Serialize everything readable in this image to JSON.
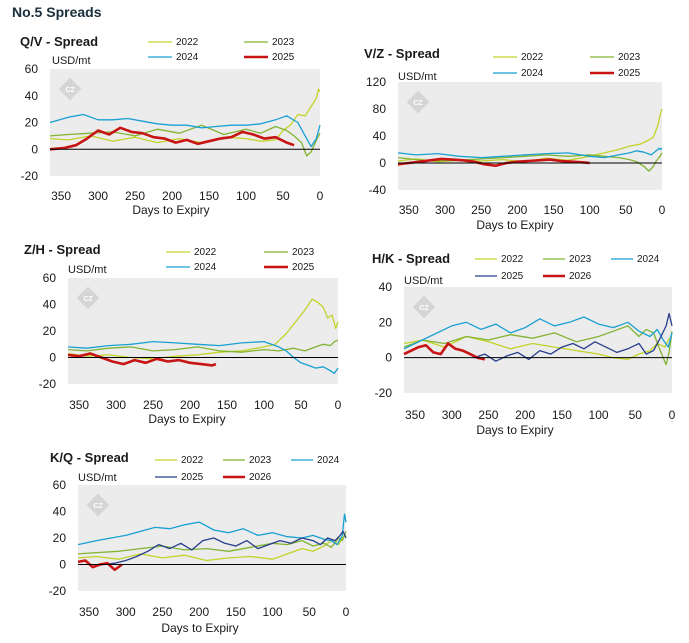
{
  "page_title": "No.5 Spreads",
  "colors": {
    "2022": "#c3d32a",
    "2023": "#82b432",
    "2024": "#19a0d2",
    "2025_red": "#c81414",
    "2025_navy": "#283c8c",
    "2026": "#c81414",
    "zero_line": "#000000",
    "plot_bg": "#ececec"
  },
  "watermark_icon": "cz-diamond-logo",
  "chart_data": [
    {
      "id": "qv",
      "type": "line",
      "title": "Q/V - Spread",
      "unit": "USD/mt",
      "xlabel": "Days to Expiry",
      "x_reversed": true,
      "xlim": [
        365,
        0
      ],
      "ylim": [
        -20,
        60
      ],
      "x_ticks": [
        350,
        300,
        250,
        200,
        150,
        100,
        50,
        0
      ],
      "y_ticks": [
        -20,
        0,
        20,
        40,
        60
      ],
      "legend": [
        "2022",
        "2023",
        "2024",
        "2025"
      ],
      "series": [
        {
          "name": "2022",
          "x": [
            365,
            340,
            310,
            280,
            250,
            220,
            190,
            160,
            130,
            100,
            80,
            60,
            50,
            40,
            30,
            20,
            12,
            5,
            2,
            0
          ],
          "y": [
            8,
            7,
            10,
            6,
            9,
            5,
            8,
            5,
            9,
            8,
            6,
            7,
            14,
            18,
            26,
            25,
            32,
            38,
            45,
            43
          ]
        },
        {
          "name": "2023",
          "x": [
            365,
            340,
            310,
            280,
            250,
            220,
            190,
            160,
            130,
            100,
            80,
            60,
            45,
            35,
            25,
            18,
            12,
            8,
            4,
            0
          ],
          "y": [
            10,
            11,
            12,
            13,
            10,
            15,
            12,
            18,
            11,
            15,
            12,
            17,
            14,
            10,
            5,
            -5,
            -2,
            3,
            8,
            12
          ]
        },
        {
          "name": "2024",
          "x": [
            365,
            340,
            320,
            300,
            280,
            260,
            240,
            220,
            200,
            180,
            160,
            140,
            120,
            100,
            80,
            60,
            45,
            30,
            20,
            12,
            5,
            0
          ],
          "y": [
            20,
            24,
            26,
            22,
            22,
            23,
            21,
            19,
            18,
            18,
            16,
            17,
            18,
            18,
            19,
            22,
            25,
            20,
            10,
            2,
            8,
            18
          ]
        },
        {
          "name": "2025",
          "x": [
            365,
            345,
            330,
            315,
            300,
            285,
            270,
            255,
            240,
            225,
            210,
            195,
            180,
            165,
            150,
            135,
            120,
            105,
            90,
            75,
            60,
            45,
            35
          ],
          "y": [
            0,
            1,
            3,
            8,
            14,
            11,
            16,
            13,
            12,
            9,
            8,
            5,
            7,
            4,
            6,
            8,
            9,
            13,
            11,
            8,
            9,
            5,
            3
          ]
        }
      ]
    },
    {
      "id": "vz",
      "type": "line",
      "title": "V/Z - Spread",
      "unit": "USD/mt",
      "xlabel": "Days to Expiry",
      "x_reversed": true,
      "xlim": [
        365,
        0
      ],
      "ylim": [
        -40,
        120
      ],
      "x_ticks": [
        350,
        300,
        250,
        200,
        150,
        100,
        50,
        0
      ],
      "y_ticks": [
        -40,
        0,
        40,
        80,
        120
      ],
      "legend": [
        "2022",
        "2023",
        "2024",
        "2025"
      ],
      "series": [
        {
          "name": "2022",
          "x": [
            365,
            340,
            310,
            280,
            250,
            220,
            190,
            160,
            130,
            100,
            80,
            60,
            45,
            30,
            20,
            12,
            6,
            3,
            0
          ],
          "y": [
            3,
            6,
            2,
            4,
            3,
            5,
            2,
            7,
            4,
            10,
            15,
            20,
            25,
            28,
            33,
            38,
            55,
            70,
            80
          ]
        },
        {
          "name": "2023",
          "x": [
            365,
            340,
            310,
            280,
            250,
            220,
            190,
            160,
            130,
            100,
            80,
            60,
            45,
            35,
            25,
            18,
            12,
            8,
            4,
            0
          ],
          "y": [
            8,
            5,
            3,
            4,
            6,
            8,
            10,
            12,
            10,
            12,
            10,
            8,
            5,
            2,
            -5,
            -12,
            -5,
            3,
            8,
            15
          ]
        },
        {
          "name": "2024",
          "x": [
            365,
            340,
            310,
            280,
            250,
            220,
            190,
            160,
            130,
            100,
            80,
            60,
            45,
            35,
            25,
            15,
            8,
            4,
            2,
            0
          ],
          "y": [
            15,
            12,
            14,
            10,
            8,
            10,
            12,
            14,
            15,
            10,
            8,
            12,
            15,
            18,
            16,
            12,
            18,
            22,
            20,
            22
          ]
        },
        {
          "name": "2025",
          "x": [
            365,
            350,
            335,
            320,
            305,
            290,
            275,
            260,
            245,
            230,
            215,
            200,
            185,
            170,
            155,
            140,
            125,
            110,
            100
          ],
          "y": [
            -2,
            0,
            2,
            4,
            6,
            5,
            4,
            2,
            -2,
            -4,
            0,
            2,
            3,
            4,
            5,
            3,
            2,
            1,
            0
          ]
        }
      ]
    },
    {
      "id": "zh",
      "type": "line",
      "title": "Z/H - Spread",
      "unit": "USD/mt",
      "xlabel": "Days to Expiry",
      "x_reversed": true,
      "xlim": [
        365,
        0
      ],
      "ylim": [
        -20,
        60
      ],
      "x_ticks": [
        350,
        300,
        250,
        200,
        150,
        100,
        50,
        0
      ],
      "y_ticks": [
        -20,
        0,
        20,
        40,
        60
      ],
      "legend": [
        "2022",
        "2023",
        "2024",
        "2025"
      ],
      "series": [
        {
          "name": "2022",
          "x": [
            365,
            340,
            310,
            280,
            250,
            220,
            190,
            160,
            130,
            100,
            85,
            70,
            60,
            50,
            42,
            35,
            28,
            20,
            14,
            8,
            3,
            0
          ],
          "y": [
            3,
            1,
            2,
            0,
            -1,
            1,
            2,
            4,
            5,
            8,
            10,
            18,
            25,
            32,
            38,
            44,
            42,
            38,
            30,
            32,
            22,
            27
          ]
        },
        {
          "name": "2023",
          "x": [
            365,
            340,
            310,
            280,
            250,
            220,
            190,
            160,
            130,
            100,
            80,
            60,
            45,
            30,
            20,
            10,
            5,
            0
          ],
          "y": [
            6,
            5,
            7,
            8,
            5,
            6,
            8,
            5,
            4,
            6,
            5,
            7,
            5,
            8,
            10,
            9,
            12,
            13
          ]
        },
        {
          "name": "2024",
          "x": [
            365,
            340,
            310,
            280,
            250,
            220,
            190,
            160,
            130,
            100,
            80,
            70,
            60,
            50,
            40,
            30,
            20,
            10,
            5,
            0
          ],
          "y": [
            8,
            7,
            9,
            10,
            12,
            11,
            10,
            9,
            11,
            12,
            8,
            5,
            0,
            -4,
            -6,
            -8,
            -7,
            -10,
            -12,
            -8
          ]
        },
        {
          "name": "2025",
          "x": [
            365,
            350,
            335,
            320,
            305,
            290,
            275,
            260,
            245,
            230,
            215,
            200,
            185,
            170,
            165
          ],
          "y": [
            2,
            1,
            3,
            0,
            -3,
            -5,
            -2,
            -4,
            -1,
            -3,
            -2,
            -4,
            -5,
            -6,
            -5
          ]
        }
      ]
    },
    {
      "id": "hk",
      "type": "line",
      "title": "H/K - Spread",
      "unit": "USD/mt",
      "xlabel": "Days to Expiry",
      "x_reversed": true,
      "xlim": [
        365,
        0
      ],
      "ylim": [
        -20,
        40
      ],
      "x_ticks": [
        350,
        300,
        250,
        200,
        150,
        100,
        50,
        0
      ],
      "y_ticks": [
        -20,
        0,
        20,
        40
      ],
      "legend": [
        "2022",
        "2023",
        "2024",
        "2025",
        "2026"
      ],
      "series": [
        {
          "name": "2022",
          "x": [
            365,
            340,
            310,
            280,
            250,
            220,
            190,
            160,
            130,
            100,
            80,
            60,
            45,
            30,
            20,
            10,
            5,
            0
          ],
          "y": [
            8,
            10,
            6,
            12,
            9,
            5,
            8,
            6,
            4,
            2,
            0,
            -1,
            2,
            4,
            8,
            6,
            10,
            12
          ]
        },
        {
          "name": "2023",
          "x": [
            365,
            340,
            310,
            280,
            250,
            220,
            190,
            160,
            130,
            100,
            80,
            60,
            45,
            35,
            25,
            18,
            12,
            8,
            4,
            0
          ],
          "y": [
            6,
            10,
            8,
            12,
            10,
            13,
            11,
            14,
            9,
            12,
            15,
            18,
            12,
            16,
            14,
            6,
            0,
            -4,
            3,
            15
          ]
        },
        {
          "name": "2024",
          "x": [
            365,
            340,
            320,
            300,
            280,
            260,
            240,
            220,
            200,
            180,
            160,
            140,
            120,
            100,
            80,
            60,
            45,
            30,
            20,
            12,
            5,
            0
          ],
          "y": [
            5,
            10,
            14,
            18,
            20,
            16,
            19,
            14,
            17,
            22,
            18,
            20,
            23,
            19,
            17,
            20,
            15,
            12,
            16,
            10,
            6,
            14
          ]
        },
        {
          "name": "2025",
          "x": [
            270,
            255,
            240,
            225,
            210,
            195,
            180,
            165,
            150,
            135,
            120,
            105,
            90,
            75,
            60,
            45,
            35,
            25,
            15,
            8,
            4,
            0
          ],
          "y": [
            0,
            2,
            -2,
            1,
            3,
            -1,
            4,
            2,
            6,
            8,
            5,
            9,
            6,
            3,
            5,
            8,
            2,
            4,
            12,
            18,
            25,
            18
          ]
        },
        {
          "name": "2026",
          "x": [
            365,
            355,
            345,
            335,
            325,
            315,
            305,
            295,
            285,
            275,
            265,
            255
          ],
          "y": [
            2,
            4,
            6,
            7,
            3,
            2,
            8,
            5,
            4,
            2,
            0,
            -1
          ]
        }
      ]
    },
    {
      "id": "kq",
      "type": "line",
      "title": "K/Q - Spread",
      "unit": "USD/mt",
      "xlabel": "Days to Expiry",
      "x_reversed": true,
      "xlim": [
        365,
        0
      ],
      "ylim": [
        -20,
        60
      ],
      "x_ticks": [
        350,
        300,
        250,
        200,
        150,
        100,
        50,
        0
      ],
      "y_ticks": [
        -20,
        0,
        20,
        40,
        60
      ],
      "legend": [
        "2022",
        "2023",
        "2024",
        "2025",
        "2026"
      ],
      "series": [
        {
          "name": "2022",
          "x": [
            365,
            340,
            310,
            280,
            250,
            220,
            190,
            160,
            130,
            100,
            80,
            60,
            45,
            30,
            20,
            10,
            5,
            0
          ],
          "y": [
            5,
            6,
            4,
            8,
            5,
            7,
            3,
            5,
            6,
            4,
            8,
            12,
            10,
            14,
            18,
            15,
            20,
            22
          ]
        },
        {
          "name": "2023",
          "x": [
            365,
            340,
            310,
            280,
            250,
            220,
            190,
            160,
            130,
            100,
            80,
            60,
            45,
            30,
            20,
            10,
            5,
            0
          ],
          "y": [
            8,
            9,
            10,
            12,
            14,
            11,
            12,
            10,
            13,
            16,
            15,
            18,
            14,
            16,
            13,
            20,
            18,
            25
          ]
        },
        {
          "name": "2024",
          "x": [
            365,
            340,
            320,
            300,
            280,
            260,
            240,
            220,
            200,
            180,
            160,
            140,
            120,
            100,
            80,
            60,
            45,
            30,
            20,
            12,
            5,
            2,
            0
          ],
          "y": [
            15,
            18,
            20,
            22,
            25,
            28,
            27,
            30,
            32,
            26,
            24,
            27,
            22,
            24,
            21,
            20,
            22,
            19,
            18,
            15,
            22,
            38,
            32
          ]
        },
        {
          "name": "2025",
          "x": [
            330,
            315,
            300,
            285,
            270,
            255,
            240,
            225,
            210,
            195,
            180,
            165,
            150,
            135,
            120,
            105,
            90,
            75,
            60,
            45,
            35,
            25,
            15,
            8,
            4,
            0
          ],
          "y": [
            0,
            1,
            3,
            6,
            10,
            15,
            12,
            16,
            11,
            18,
            20,
            16,
            14,
            18,
            12,
            15,
            18,
            16,
            20,
            18,
            15,
            20,
            18,
            22,
            25,
            20
          ]
        },
        {
          "name": "2026",
          "x": [
            365,
            355,
            345,
            335,
            325,
            315,
            305
          ],
          "y": [
            2,
            3,
            -2,
            0,
            1,
            -4,
            0
          ]
        }
      ]
    }
  ]
}
